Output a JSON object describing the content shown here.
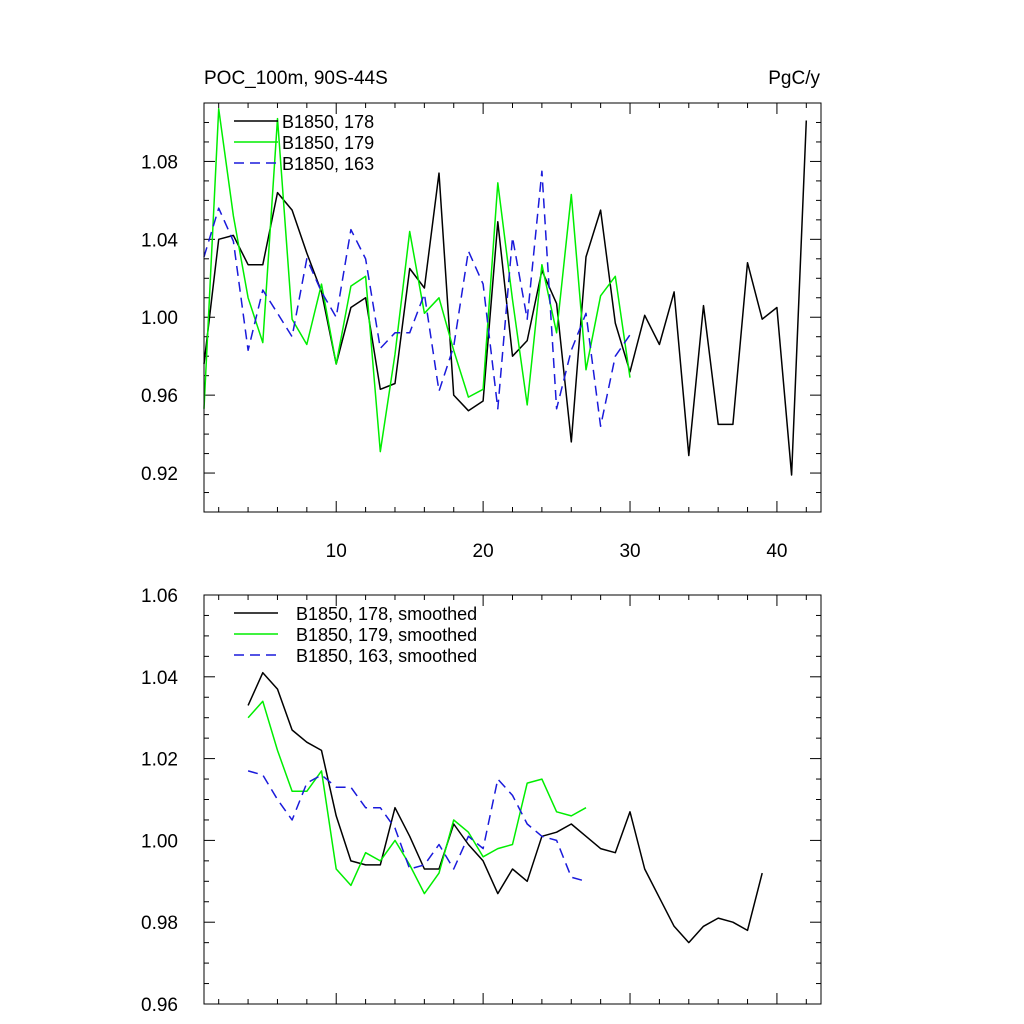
{
  "chart_data": [
    {
      "type": "line",
      "title_left": "POC_100m, 90S-44S",
      "title_right": "PgC/y",
      "xlim": [
        1,
        43
      ],
      "ylim": [
        0.9,
        1.11
      ],
      "xticks": [
        10,
        20,
        30,
        40
      ],
      "xticklabels": [
        "10",
        "20",
        "30",
        "40"
      ],
      "yticks": [
        0.92,
        0.96,
        1.0,
        1.04,
        1.08
      ],
      "yticklabels": [
        "0.92",
        "0.96",
        "1.00",
        "1.04",
        "1.08"
      ],
      "series": [
        {
          "name": "B1850, 178",
          "color": "#000000",
          "dash": "solid",
          "x": [
            1,
            2,
            3,
            4,
            5,
            6,
            7,
            8,
            9,
            10,
            11,
            12,
            13,
            14,
            15,
            16,
            17,
            18,
            19,
            20,
            21,
            22,
            23,
            24,
            25,
            26,
            27,
            28,
            29,
            30,
            31,
            32,
            33,
            34,
            35,
            36,
            37,
            38,
            39,
            40,
            41,
            42
          ],
          "values": [
            0.976,
            1.04,
            1.042,
            1.027,
            1.027,
            1.064,
            1.055,
            1.033,
            1.013,
            0.976,
            1.005,
            1.01,
            0.963,
            0.966,
            1.025,
            1.015,
            1.074,
            0.96,
            0.952,
            0.957,
            1.049,
            0.98,
            0.988,
            1.024,
            1.007,
            0.936,
            1.031,
            1.055,
            0.997,
            0.972,
            1.001,
            0.986,
            1.013,
            0.929,
            1.006,
            0.945,
            0.945,
            1.028,
            0.999,
            1.005,
            0.919,
            1.101
          ]
        },
        {
          "name": "B1850, 179",
          "color": "#00ee00",
          "dash": "solid",
          "x": [
            1,
            2,
            3,
            4,
            5,
            6,
            7,
            8,
            9,
            10,
            11,
            12,
            13,
            14,
            15,
            16,
            17,
            18,
            19,
            20,
            21,
            22,
            23,
            24,
            25,
            26,
            27,
            28,
            29,
            30
          ],
          "values": [
            0.953,
            1.107,
            1.052,
            1.01,
            0.987,
            1.102,
            0.999,
            0.986,
            1.017,
            0.976,
            1.016,
            1.021,
            0.931,
            0.981,
            1.044,
            1.002,
            1.01,
            0.983,
            0.959,
            0.963,
            1.069,
            1.009,
            0.955,
            1.027,
            0.992,
            1.063,
            0.973,
            1.011,
            1.021,
            0.969
          ]
        },
        {
          "name": "B1850, 163",
          "color": "#1a1adb",
          "dash": "dashed",
          "x": [
            1,
            2,
            3,
            4,
            5,
            6,
            7,
            8,
            9,
            10,
            11,
            12,
            13,
            14,
            15,
            16,
            17,
            18,
            19,
            20,
            21,
            22,
            23,
            24,
            25,
            26,
            27,
            28,
            29,
            30
          ],
          "values": [
            1.031,
            1.056,
            1.039,
            0.983,
            1.014,
            1.002,
            0.99,
            1.03,
            1.013,
            1.0,
            1.045,
            1.03,
            0.984,
            0.992,
            0.992,
            1.012,
            0.962,
            0.985,
            1.034,
            1.017,
            0.953,
            1.041,
            0.999,
            1.075,
            0.953,
            0.983,
            1.002,
            0.944,
            0.98,
            0.991
          ]
        }
      ]
    },
    {
      "type": "line",
      "xlim": [
        1,
        43
      ],
      "ylim": [
        0.96,
        1.06
      ],
      "xticks": [
        10,
        20,
        30,
        40
      ],
      "yticks": [
        0.96,
        0.98,
        1.0,
        1.02,
        1.04,
        1.06
      ],
      "yticklabels": [
        "0.96",
        "0.98",
        "1.00",
        "1.02",
        "1.04",
        "1.06"
      ],
      "series": [
        {
          "name": "B1850, 178, smoothed",
          "color": "#000000",
          "dash": "solid",
          "x": [
            4,
            5,
            6,
            7,
            8,
            9,
            10,
            11,
            12,
            13,
            14,
            15,
            16,
            17,
            18,
            19,
            20,
            21,
            22,
            23,
            24,
            25,
            26,
            27,
            28,
            29,
            30,
            31,
            32,
            33,
            34,
            35,
            36,
            37,
            38,
            39
          ],
          "values": [
            1.033,
            1.041,
            1.037,
            1.027,
            1.024,
            1.022,
            1.006,
            0.995,
            0.994,
            0.994,
            1.008,
            1.001,
            0.993,
            0.993,
            1.004,
            0.999,
            0.995,
            0.987,
            0.993,
            0.99,
            1.001,
            1.002,
            1.004,
            1.001,
            0.998,
            0.997,
            1.007,
            0.993,
            0.986,
            0.979,
            0.975,
            0.979,
            0.981,
            0.98,
            0.978,
            0.992
          ]
        },
        {
          "name": "B1850, 179, smoothed",
          "color": "#00ee00",
          "dash": "solid",
          "x": [
            4,
            5,
            6,
            7,
            8,
            9,
            10,
            11,
            12,
            13,
            14,
            15,
            16,
            17,
            18,
            19,
            20,
            21,
            22,
            23,
            24,
            25,
            26,
            27
          ],
          "values": [
            1.03,
            1.034,
            1.022,
            1.012,
            1.012,
            1.017,
            0.993,
            0.989,
            0.997,
            0.995,
            1.0,
            0.994,
            0.987,
            0.992,
            1.005,
            1.002,
            0.996,
            0.998,
            0.999,
            1.014,
            1.015,
            1.007,
            1.006,
            1.008
          ]
        },
        {
          "name": "B1850, 163, smoothed",
          "color": "#1a1adb",
          "dash": "dashed",
          "x": [
            4,
            5,
            6,
            7,
            8,
            9,
            10,
            11,
            12,
            13,
            14,
            15,
            16,
            17,
            18,
            19,
            20,
            21,
            22,
            23,
            24,
            25,
            26,
            27
          ],
          "values": [
            1.017,
            1.016,
            1.01,
            1.005,
            1.014,
            1.016,
            1.013,
            1.013,
            1.008,
            1.008,
            1.003,
            0.993,
            0.994,
            0.999,
            0.993,
            1.001,
            0.998,
            1.015,
            1.011,
            1.004,
            1.001,
            1.0,
            0.991,
            0.99
          ]
        }
      ]
    }
  ]
}
